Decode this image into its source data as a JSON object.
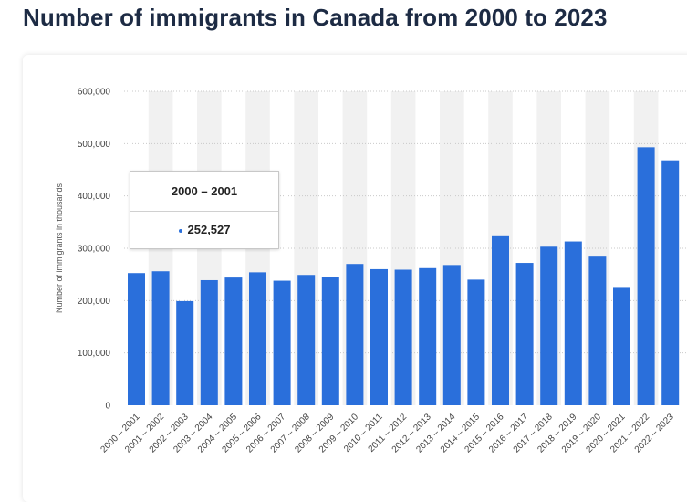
{
  "page": {
    "title": "Number of immigrants in Canada from 2000 to 2023"
  },
  "tooltip": {
    "category": "2000 – 2001",
    "value": "252,527"
  },
  "colors": {
    "bar": "#2a6fdb",
    "band": "#f1f1f1",
    "grid": "#c9c9c9"
  },
  "chart_data": {
    "type": "bar",
    "ylabel": "Number of immigrants in thousands",
    "ylim": [
      0,
      600000
    ],
    "yticks": [
      0,
      100000,
      200000,
      300000,
      400000,
      500000,
      600000
    ],
    "ytick_labels": [
      "0",
      "100,000",
      "200,000",
      "300,000",
      "400,000",
      "500,000",
      "600,000"
    ],
    "grid": true,
    "categories": [
      "2000 – 2001",
      "2001 – 2002",
      "2002 – 2003",
      "2003 – 2004",
      "2004 – 2005",
      "2005 – 2006",
      "2006 – 2007",
      "2007 – 2008",
      "2008 – 2009",
      "2009 – 2010",
      "2010 – 2011",
      "2011 – 2012",
      "2012 – 2013",
      "2013 – 2014",
      "2014 – 2015",
      "2015 – 2016",
      "2016 – 2017",
      "2017 – 2018",
      "2018 – 2019",
      "2019 – 2020",
      "2020 – 2021",
      "2021 – 2022",
      "2022 – 2023"
    ],
    "values": [
      252527,
      256000,
      199000,
      239000,
      244000,
      254000,
      238000,
      249000,
      245000,
      270000,
      260000,
      259000,
      262000,
      268000,
      240000,
      323000,
      272000,
      303000,
      313000,
      284000,
      226000,
      493000,
      468000
    ]
  }
}
